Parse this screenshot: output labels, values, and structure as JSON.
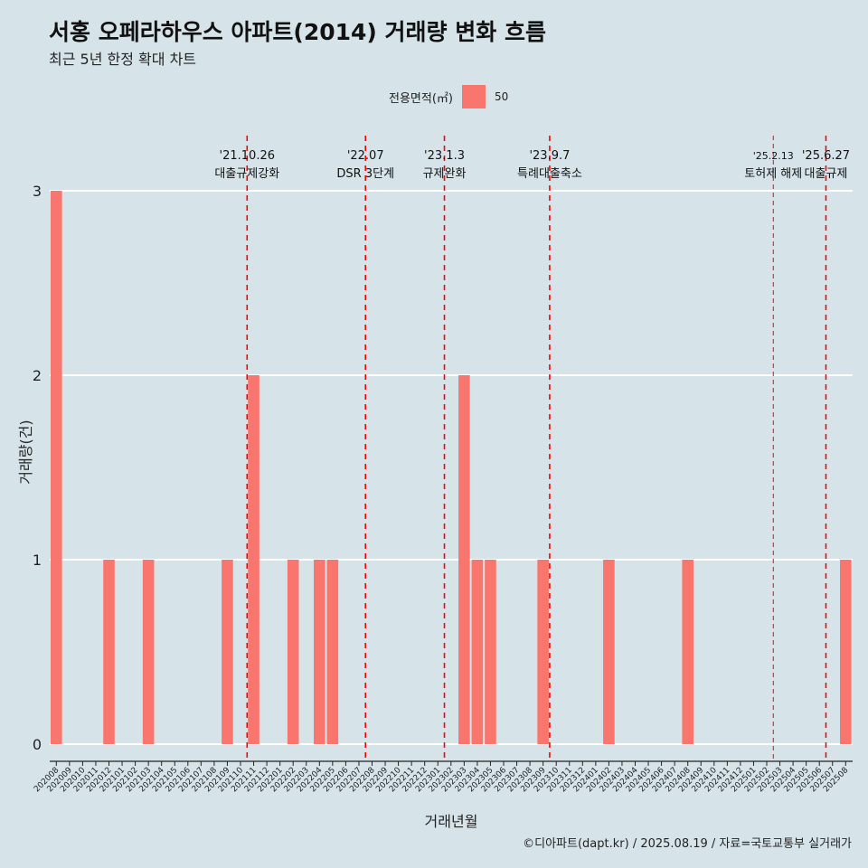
{
  "header": {
    "title": "서홍 오페라하우스 아파트(2014) 거래량 변화 흐름",
    "subtitle": "최근 5년 한정 확대 차트"
  },
  "legend": {
    "title": "전용면적(㎡)",
    "items": [
      "50"
    ]
  },
  "caption": "©디아파트(dapt.kr) / 2025.08.19 / 자료=국토교통부 실거래가",
  "colors": {
    "background": "#d6e4ea",
    "bar": "#f8766d",
    "event_line": "#ff0000",
    "grid": "#ffffff"
  },
  "chart_data": {
    "type": "bar",
    "title": "서홍 오페라하우스 아파트(2014) 거래량 변화 흐름",
    "subtitle": "최근 5년 한정 확대 차트",
    "xlabel": "거래년월",
    "ylabel": "거래량(건)",
    "ylim": [
      0,
      3
    ],
    "yticks": [
      0,
      1,
      2,
      3
    ],
    "grid": true,
    "legend_position": "top",
    "categories": [
      "202008",
      "202009",
      "202010",
      "202011",
      "202012",
      "202101",
      "202102",
      "202103",
      "202104",
      "202105",
      "202106",
      "202107",
      "202108",
      "202109",
      "202110",
      "202111",
      "202112",
      "202201",
      "202202",
      "202203",
      "202204",
      "202205",
      "202206",
      "202207",
      "202208",
      "202209",
      "202210",
      "202211",
      "202212",
      "202301",
      "202302",
      "202303",
      "202304",
      "202305",
      "202306",
      "202307",
      "202308",
      "202309",
      "202310",
      "202311",
      "202312",
      "202401",
      "202402",
      "202403",
      "202404",
      "202405",
      "202406",
      "202407",
      "202408",
      "202409",
      "202410",
      "202411",
      "202412",
      "202501",
      "202502",
      "202503",
      "202504",
      "202505",
      "202506",
      "202507",
      "202508"
    ],
    "series": [
      {
        "name": "50",
        "values": [
          3,
          0,
          0,
          0,
          1,
          0,
          0,
          1,
          0,
          0,
          0,
          0,
          0,
          1,
          0,
          2,
          0,
          0,
          1,
          0,
          1,
          1,
          0,
          0,
          0,
          0,
          0,
          0,
          0,
          0,
          0,
          2,
          1,
          1,
          0,
          0,
          0,
          1,
          0,
          0,
          0,
          0,
          1,
          0,
          0,
          0,
          0,
          0,
          1,
          0,
          0,
          0,
          0,
          0,
          0,
          0,
          0,
          0,
          0,
          0,
          1
        ]
      }
    ],
    "events": [
      {
        "date": "'21.10.26",
        "label": "대출규제강화",
        "position": 14.5,
        "dashed_small": false
      },
      {
        "date": "'22.07",
        "label": "DSR 3단계",
        "position": 23.5,
        "dashed_small": false
      },
      {
        "date": "'23.1.3",
        "label": "규제완화",
        "position": 29.5,
        "dashed_small": false
      },
      {
        "date": "'23.9.7",
        "label": "특례대출축소",
        "position": 37.5,
        "dashed_small": false
      },
      {
        "date": "'25.2.13",
        "label": "토허제 해제",
        "position": 54.5,
        "dashed_small": true
      },
      {
        "date": "'25.6.27",
        "label": "대출규제",
        "position": 58.5,
        "dashed_small": false
      }
    ]
  }
}
